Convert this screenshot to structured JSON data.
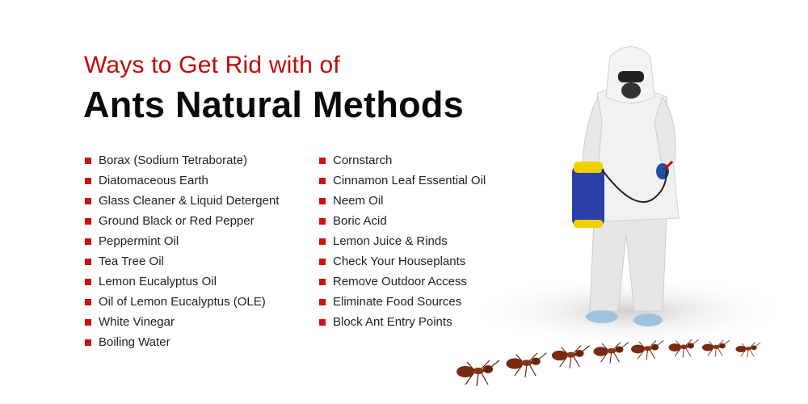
{
  "heading": {
    "subtitle": "Ways to Get Rid with of",
    "title": "Ants Natural Methods"
  },
  "methods_left": [
    "Borax (Sodium Tetraborate)",
    "Diatomaceous Earth",
    "Glass Cleaner & Liquid Detergent",
    "Ground Black or Red Pepper",
    "Peppermint Oil",
    "Tea Tree Oil",
    "Lemon Eucalyptus Oil",
    "Oil of Lemon Eucalyptus (OLE)",
    "White Vinegar",
    "Boiling Water"
  ],
  "methods_right": [
    "Cornstarch",
    "Cinnamon Leaf Essential Oil",
    "Neem Oil",
    "Boric Acid",
    "Lemon Juice & Rinds",
    "Check Your Houseplants",
    "Remove Outdoor Access",
    "Eliminate Food Sources",
    "Block Ant Entry Points"
  ],
  "colors": {
    "accent": "#c20a0a",
    "bullet": "#d01010",
    "title": "#0a0a0a"
  },
  "illustration": [
    "pest-control-worker-with-sprayer",
    "ants"
  ]
}
